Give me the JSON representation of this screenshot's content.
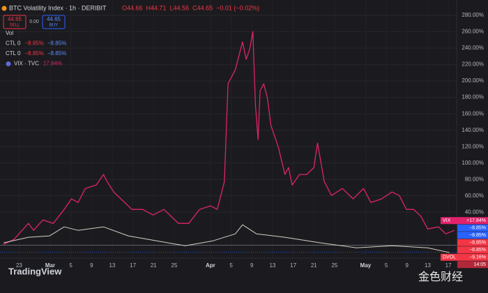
{
  "header": {
    "title": "BTC Volatility Index · 1h · DERIBIT",
    "ohlc": [
      "O44.66",
      "H44.71",
      "L44.56",
      "C44.65",
      "−0.01 (−0.02%)"
    ]
  },
  "trade": {
    "sell_price": "44.65",
    "sell": "SELL",
    "spread": "0.00",
    "buy_price": "44.65",
    "buy": "BUY"
  },
  "legend": [
    {
      "name": "Vol"
    },
    {
      "name": "CTL 0",
      "values": [
        "−8.85%",
        "−8.85%"
      ]
    },
    {
      "name": "CTL 0",
      "values": [
        "−8.85%",
        "−8.85%"
      ]
    },
    {
      "name": "VIX · TVC",
      "values": [
        "17.84%"
      ]
    }
  ],
  "chart_data": {
    "type": "line",
    "xlim": [
      -3.7,
      84.6
    ],
    "xticks": [
      {
        "value": 0,
        "label": "23"
      },
      {
        "value": 6,
        "label": "Mar"
      },
      {
        "value": 10,
        "label": "5"
      },
      {
        "value": 14,
        "label": "9"
      },
      {
        "value": 18,
        "label": "13"
      },
      {
        "value": 22,
        "label": "17"
      },
      {
        "value": 26,
        "label": "21"
      },
      {
        "value": 30,
        "label": "25"
      },
      {
        "value": 37,
        "label": "Apr"
      },
      {
        "value": 41,
        "label": "5"
      },
      {
        "value": 45,
        "label": "9"
      },
      {
        "value": 49,
        "label": "13"
      },
      {
        "value": 53,
        "label": "17"
      },
      {
        "value": 57,
        "label": "21"
      },
      {
        "value": 61,
        "label": "25"
      },
      {
        "value": 67,
        "label": "May"
      },
      {
        "value": 71,
        "label": "5"
      },
      {
        "value": 75,
        "label": "9"
      },
      {
        "value": 79,
        "label": "13"
      },
      {
        "value": 83,
        "label": "17"
      }
    ],
    "ylim": [
      -16,
      292
    ],
    "yticks": [
      {
        "value": 280,
        "label": "280.00%"
      },
      {
        "value": 260,
        "label": "260.00%"
      },
      {
        "value": 240,
        "label": "240.00%"
      },
      {
        "value": 220,
        "label": "220.00%"
      },
      {
        "value": 200,
        "label": "200.00%"
      },
      {
        "value": 180,
        "label": "180.00%"
      },
      {
        "value": 160,
        "label": "160.00%"
      },
      {
        "value": 140,
        "label": "140.00%"
      },
      {
        "value": 120,
        "label": "120.00%"
      },
      {
        "value": 100,
        "label": "100.00%"
      },
      {
        "value": 80,
        "label": "80.00%"
      },
      {
        "value": 60,
        "label": "60.00%"
      },
      {
        "value": 40,
        "label": "40.00%"
      }
    ],
    "grid": true,
    "series": [
      {
        "name": "VIX",
        "color": "#e0236b",
        "x": [
          -3.0,
          -1.0,
          1.8,
          2.8,
          4.6,
          6.6,
          8.7,
          10.1,
          11.4,
          12.8,
          14.9,
          16.3,
          17.0,
          18.3,
          19.7,
          21.8,
          23.9,
          25.9,
          28.0,
          30.8,
          32.8,
          34.9,
          37.0,
          38.3,
          39.7,
          40.4,
          41.8,
          43.2,
          43.9,
          44.6,
          45.2,
          45.7,
          46.2,
          46.6,
          47.3,
          48.0,
          48.7,
          50.1,
          51.4,
          52.1,
          52.8,
          54.2,
          55.6,
          57.0,
          57.7,
          59.0,
          60.4,
          62.5,
          64.6,
          66.6,
          68.0,
          70.1,
          72.1,
          73.5,
          74.9,
          76.3,
          77.7,
          79.0,
          81.1,
          82.5,
          84.2
        ],
        "values": [
          0.9,
          6.8,
          26.4,
          17.9,
          30.6,
          26.4,
          43.4,
          56.2,
          51.9,
          68.9,
          73.2,
          86.0,
          77.4,
          64.7,
          56.2,
          43.4,
          43.4,
          36.6,
          43.4,
          26.4,
          26.4,
          43.4,
          47.7,
          43.4,
          77.4,
          196.6,
          213.6,
          247.7,
          226.4,
          239.1,
          260.4,
          171.1,
          128.5,
          188.1,
          196.6,
          179.6,
          145.5,
          120.0,
          86.0,
          94.5,
          73.2,
          86.0,
          86.0,
          94.5,
          124.3,
          77.4,
          60.4,
          68.9,
          56.2,
          68.9,
          51.9,
          56.2,
          64.7,
          60.4,
          43.4,
          43.4,
          34.9,
          19.6,
          22.1,
          13.6,
          17.84
        ]
      },
      {
        "name": "DVOL",
        "color": "#d9cfc4",
        "x": [
          -3.0,
          1.8,
          5.9,
          8.7,
          11.4,
          16.3,
          21.1,
          26.6,
          32.1,
          37.5,
          41.8,
          43.2,
          45.9,
          51.4,
          58.3,
          65.2,
          72.1,
          79.0,
          83.2
        ],
        "values": [
          2.6,
          9.4,
          11.1,
          22.1,
          17.9,
          22.1,
          11.1,
          5.1,
          -0.9,
          5.1,
          13.6,
          24.7,
          13.6,
          9.4,
          2.6,
          -3.4,
          -0.9,
          -3.4,
          -9.16
        ]
      }
    ],
    "reference_lines": [
      {
        "value": -8.85,
        "color": "#787b86"
      },
      {
        "value": -8.85,
        "color": "#2962ff"
      }
    ],
    "price_tags": [
      {
        "text": "VIX",
        "value": "+17.84%",
        "color": "#e0236b"
      },
      {
        "value": "−8.85%",
        "color": "#2962ff"
      },
      {
        "value": "−8.85%",
        "color": "#2962ff"
      },
      {
        "value": "−8.85%",
        "color": "#f23645"
      },
      {
        "value": "−8.85%",
        "color": "#f23645"
      },
      {
        "text": "DVOL",
        "value": "−9.16%",
        "color": "#f23645"
      },
      {
        "value": "14:05",
        "color": "#b2283a"
      }
    ]
  },
  "watermark": "TradingView",
  "watermark2": "金色财经"
}
